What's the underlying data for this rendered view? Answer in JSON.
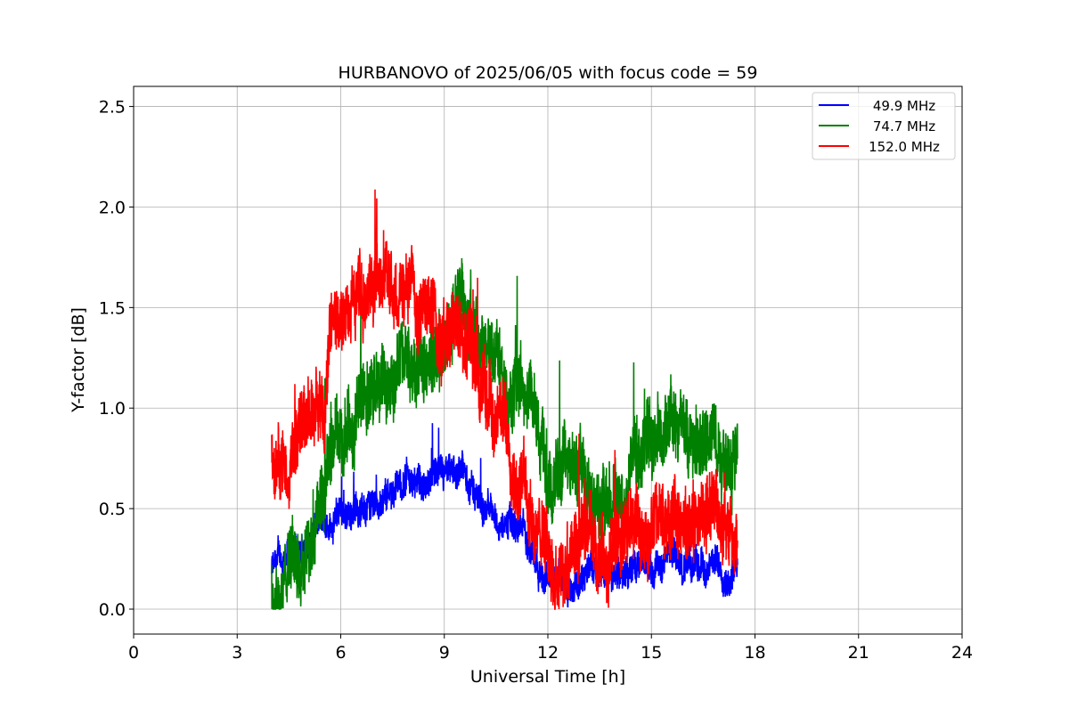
{
  "chart_data": {
    "type": "line",
    "title": "HURBANOVO of 2025/06/05 with focus code = 59",
    "xlabel": "Universal Time [h]",
    "ylabel": "Y-factor [dB]",
    "xlim": [
      0,
      24
    ],
    "ylim": [
      -0.124,
      2.6
    ],
    "xticks": [
      0,
      3,
      6,
      9,
      12,
      15,
      18,
      21,
      24
    ],
    "xtick_labels": [
      "0",
      "3",
      "6",
      "9",
      "12",
      "15",
      "18",
      "21",
      "24"
    ],
    "yticks": [
      0.0,
      0.5,
      1.0,
      1.5,
      2.0,
      2.5
    ],
    "ytick_labels": [
      "0.0",
      "0.5",
      "1.0",
      "1.5",
      "2.0",
      "2.5"
    ],
    "grid": true,
    "legend_position": "top-right",
    "x": [
      4,
      4.5,
      5,
      5.5,
      6,
      6.5,
      7,
      7.5,
      8,
      8.5,
      9,
      9.5,
      10,
      10.5,
      11,
      11.5,
      12,
      12.5,
      13,
      13.5,
      14,
      14.5,
      15,
      15.5,
      16,
      16.5,
      17,
      17.5
    ],
    "series": [
      {
        "name": "  49.9 MHz",
        "color": "#0000ff",
        "noise": 0.09,
        "values": [
          0.2,
          0.25,
          0.3,
          0.4,
          0.5,
          0.5,
          0.55,
          0.6,
          0.65,
          0.6,
          0.6,
          0.65,
          0.55,
          0.45,
          0.4,
          0.35,
          0.15,
          0.15,
          0.18,
          0.15,
          0.15,
          0.2,
          0.22,
          0.25,
          0.2,
          0.2,
          0.2,
          0.2
        ]
      },
      {
        "name": "  74.7 MHz",
        "color": "#008000",
        "noise": 0.2,
        "values": [
          0.1,
          0.2,
          0.35,
          0.5,
          0.8,
          1.0,
          1.05,
          1.15,
          1.2,
          1.2,
          1.3,
          1.5,
          1.4,
          1.35,
          1.2,
          1.05,
          0.6,
          0.65,
          0.65,
          0.6,
          0.55,
          0.85,
          0.85,
          0.9,
          0.85,
          0.85,
          0.85,
          0.85
        ]
      },
      {
        "name": "152.0 MHz",
        "color": "#ff0000",
        "noise": 0.2,
        "values": [
          0.75,
          0.85,
          0.95,
          1.15,
          1.4,
          1.6,
          1.65,
          1.65,
          1.6,
          1.5,
          1.4,
          1.4,
          1.1,
          0.95,
          0.8,
          0.55,
          0.25,
          0.25,
          0.25,
          0.25,
          0.3,
          0.4,
          0.35,
          0.45,
          0.4,
          0.45,
          0.45,
          0.4
        ]
      }
    ]
  }
}
